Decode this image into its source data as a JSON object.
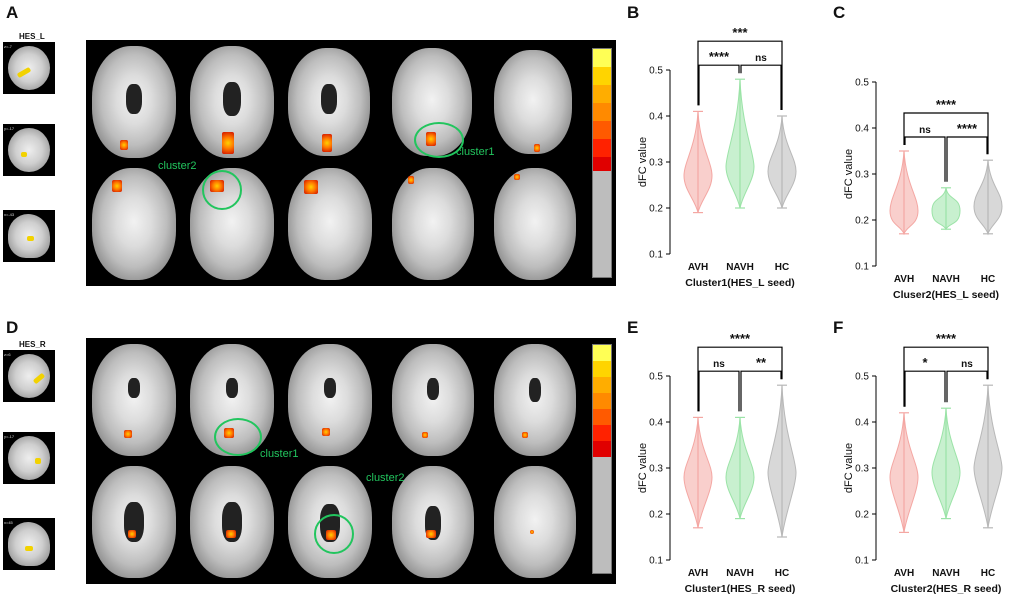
{
  "panels": {
    "A": {
      "label": "A",
      "seed": "HES_L",
      "thumb_labels": [
        "z=-7",
        "y=-17",
        "x=-43"
      ],
      "annotations": [
        "cluster2",
        "cluster1"
      ]
    },
    "B": {
      "label": "B"
    },
    "C": {
      "label": "C"
    },
    "D": {
      "label": "D",
      "seed": "HES_R",
      "thumb_labels": [
        "z=6",
        "y=-17",
        "x=45"
      ],
      "annotations": [
        "cluster1",
        "cluster2"
      ]
    },
    "E": {
      "label": "E"
    },
    "F": {
      "label": "F"
    }
  },
  "colors": {
    "AVH": "#f4a7a3",
    "NAVH": "#9be3a7",
    "HC": "#b8b8b8",
    "highlight": "#22c55e",
    "colorbar": [
      "#ffff55",
      "#ffd400",
      "#ffad00",
      "#ff8a00",
      "#ff5a00",
      "#ff2200",
      "#e00000"
    ]
  },
  "chart_data": [
    {
      "type": "violin",
      "id": "B",
      "categories": [
        "AVH",
        "NAVH",
        "HC"
      ],
      "ylabel": "dFC value",
      "xlabel": "Cluster1(HES_L seed)",
      "ylim": [
        0.1,
        0.5
      ],
      "yticks": [
        "0.1",
        "0.2",
        "0.3",
        "0.4",
        "0.5"
      ],
      "series": [
        {
          "name": "AVH",
          "min": 0.19,
          "max": 0.41,
          "median": 0.27
        },
        {
          "name": "NAVH",
          "min": 0.2,
          "max": 0.48,
          "median": 0.29
        },
        {
          "name": "HC",
          "min": 0.2,
          "max": 0.4,
          "median": 0.28
        }
      ],
      "comparisons": [
        {
          "a": 0,
          "b": 1,
          "label": "****",
          "level": 0
        },
        {
          "a": 1,
          "b": 2,
          "label": "ns",
          "level": 0
        },
        {
          "a": 0,
          "b": 2,
          "label": "***",
          "level": 1
        }
      ]
    },
    {
      "type": "violin",
      "id": "C",
      "categories": [
        "AVH",
        "NAVH",
        "HC"
      ],
      "ylabel": "dFC value",
      "xlabel": "Cluser2(HES_L seed)",
      "ylim": [
        0.1,
        0.5
      ],
      "yticks": [
        "0.1",
        "0.2",
        "0.3",
        "0.4",
        "0.5"
      ],
      "series": [
        {
          "name": "AVH",
          "min": 0.17,
          "max": 0.35,
          "median": 0.22
        },
        {
          "name": "NAVH",
          "min": 0.18,
          "max": 0.27,
          "median": 0.22
        },
        {
          "name": "HC",
          "min": 0.17,
          "max": 0.33,
          "median": 0.23
        }
      ],
      "comparisons": [
        {
          "a": 0,
          "b": 1,
          "label": "ns",
          "level": 0
        },
        {
          "a": 1,
          "b": 2,
          "label": "****",
          "level": 0
        },
        {
          "a": 0,
          "b": 2,
          "label": "****",
          "level": 1
        }
      ]
    },
    {
      "type": "violin",
      "id": "E",
      "categories": [
        "AVH",
        "NAVH",
        "HC"
      ],
      "ylabel": "dFC value",
      "xlabel": "Cluster1(HES_R seed)",
      "ylim": [
        0.1,
        0.5
      ],
      "yticks": [
        "0.1",
        "0.2",
        "0.3",
        "0.4",
        "0.5"
      ],
      "series": [
        {
          "name": "AVH",
          "min": 0.17,
          "max": 0.41,
          "median": 0.28
        },
        {
          "name": "NAVH",
          "min": 0.19,
          "max": 0.41,
          "median": 0.28
        },
        {
          "name": "HC",
          "min": 0.15,
          "max": 0.48,
          "median": 0.29
        }
      ],
      "comparisons": [
        {
          "a": 0,
          "b": 1,
          "label": "ns",
          "level": 0
        },
        {
          "a": 1,
          "b": 2,
          "label": "**",
          "level": 0
        },
        {
          "a": 0,
          "b": 2,
          "label": "****",
          "level": 1
        }
      ]
    },
    {
      "type": "violin",
      "id": "F",
      "categories": [
        "AVH",
        "NAVH",
        "HC"
      ],
      "ylabel": "dFC value",
      "xlabel": "Cluster2(HES_R seed)",
      "ylim": [
        0.1,
        0.5
      ],
      "yticks": [
        "0.1",
        "0.2",
        "0.3",
        "0.4",
        "0.5"
      ],
      "series": [
        {
          "name": "AVH",
          "min": 0.16,
          "max": 0.42,
          "median": 0.28
        },
        {
          "name": "NAVH",
          "min": 0.19,
          "max": 0.43,
          "median": 0.29
        },
        {
          "name": "HC",
          "min": 0.17,
          "max": 0.48,
          "median": 0.3
        }
      ],
      "comparisons": [
        {
          "a": 0,
          "b": 1,
          "label": "*",
          "level": 0
        },
        {
          "a": 1,
          "b": 2,
          "label": "ns",
          "level": 0
        },
        {
          "a": 0,
          "b": 2,
          "label": "****",
          "level": 1
        }
      ]
    }
  ]
}
